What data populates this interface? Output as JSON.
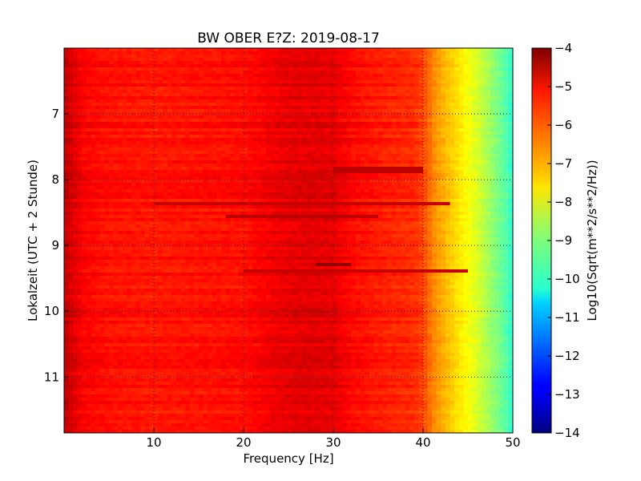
{
  "chart_data": {
    "type": "heatmap",
    "title": "BW OBER E?Z: 2019-08-17",
    "xlabel": "Frequency [Hz]",
    "ylabel": "Lokalzeit (UTC + 2 Stunde)",
    "xlim": [
      0,
      50
    ],
    "ylim": [
      11.85,
      6.0
    ],
    "y_inverted": true,
    "x_ticks": [
      10,
      20,
      30,
      40,
      50
    ],
    "y_ticks": [
      7,
      8,
      9,
      10,
      11
    ],
    "grid": true,
    "colormap": "jet",
    "colorbar": {
      "label": "Log10(Sqrt(m**2/s**2/Hz))",
      "range": [
        -14,
        -4
      ],
      "ticks": [
        -4,
        -5,
        -6,
        -7,
        -8,
        -9,
        -10,
        -11,
        -12,
        -13,
        -14
      ]
    },
    "profile": {
      "frequency_hz": [
        0,
        1,
        2,
        4,
        6,
        10,
        20,
        24,
        27,
        30,
        32,
        36,
        39,
        40,
        41,
        42,
        43,
        44,
        45,
        46,
        47,
        48,
        49,
        50
      ],
      "log10_amplitude": [
        -4.6,
        -4.9,
        -5.2,
        -5.35,
        -5.4,
        -5.45,
        -5.35,
        -5.05,
        -4.95,
        -5.0,
        -5.3,
        -5.55,
        -5.65,
        -5.9,
        -6.5,
        -6.9,
        -7.2,
        -7.5,
        -7.8,
        -8.1,
        -8.5,
        -8.9,
        -9.3,
        -9.8
      ]
    },
    "features": [
      {
        "time_h": 7.85,
        "f_hz": [
          30,
          40
        ],
        "log10_amplitude": -4.6
      },
      {
        "time_h": 8.35,
        "f_hz": [
          10,
          43
        ],
        "log10_amplitude": -4.7
      },
      {
        "time_h": 8.55,
        "f_hz": [
          18,
          35
        ],
        "log10_amplitude": -4.6
      },
      {
        "time_h": 9.28,
        "f_hz": [
          28,
          32
        ],
        "log10_amplitude": -4.2
      },
      {
        "time_h": 9.4,
        "f_hz": [
          20,
          45
        ],
        "log10_amplitude": -4.7
      }
    ]
  }
}
